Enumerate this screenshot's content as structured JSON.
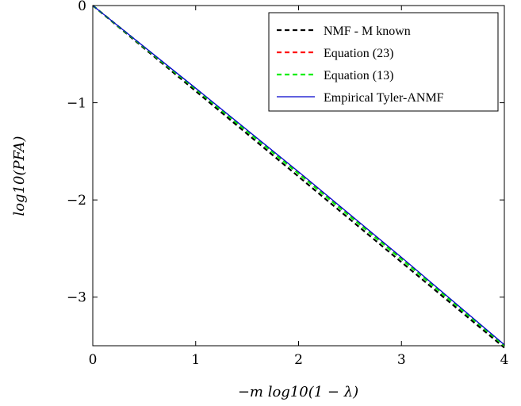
{
  "chart_data": {
    "type": "line",
    "title": "",
    "xlabel": "−m log10(1 − λ)",
    "ylabel": "log10(PFA)",
    "xlim": [
      0,
      4
    ],
    "ylim": [
      -3.5,
      0
    ],
    "x_ticks": [
      0,
      1,
      2,
      3,
      4
    ],
    "x_tick_labels": [
      "0",
      "1",
      "2",
      "3",
      "4"
    ],
    "y_ticks": [
      0,
      -1,
      -2,
      -3
    ],
    "y_tick_labels": [
      "0",
      "−1",
      "−2",
      "−3"
    ],
    "grid": false,
    "legend_position": "top-right",
    "series": [
      {
        "name": "NMF - M known",
        "style": "dashed",
        "color": "#000000",
        "x": [
          0,
          1,
          2,
          3,
          4
        ],
        "y": [
          0,
          -0.88,
          -1.76,
          -2.64,
          -3.52
        ]
      },
      {
        "name": "Equation (23)",
        "style": "dashed",
        "color": "#ff0000",
        "x": [
          0,
          1,
          2,
          3,
          4
        ],
        "y": [
          0,
          -0.86,
          -1.72,
          -2.6,
          -3.5
        ]
      },
      {
        "name": "Equation (13)",
        "style": "dashed",
        "color": "#00ee00",
        "x": [
          0,
          1,
          2,
          3,
          4
        ],
        "y": [
          0,
          -0.86,
          -1.73,
          -2.61,
          -3.5
        ]
      },
      {
        "name": "Empirical Tyler-ANMF",
        "style": "solid",
        "color": "#0000cc",
        "x": [
          0,
          1,
          2,
          3,
          4
        ],
        "y": [
          0,
          -0.85,
          -1.71,
          -2.59,
          -3.49
        ]
      }
    ]
  }
}
